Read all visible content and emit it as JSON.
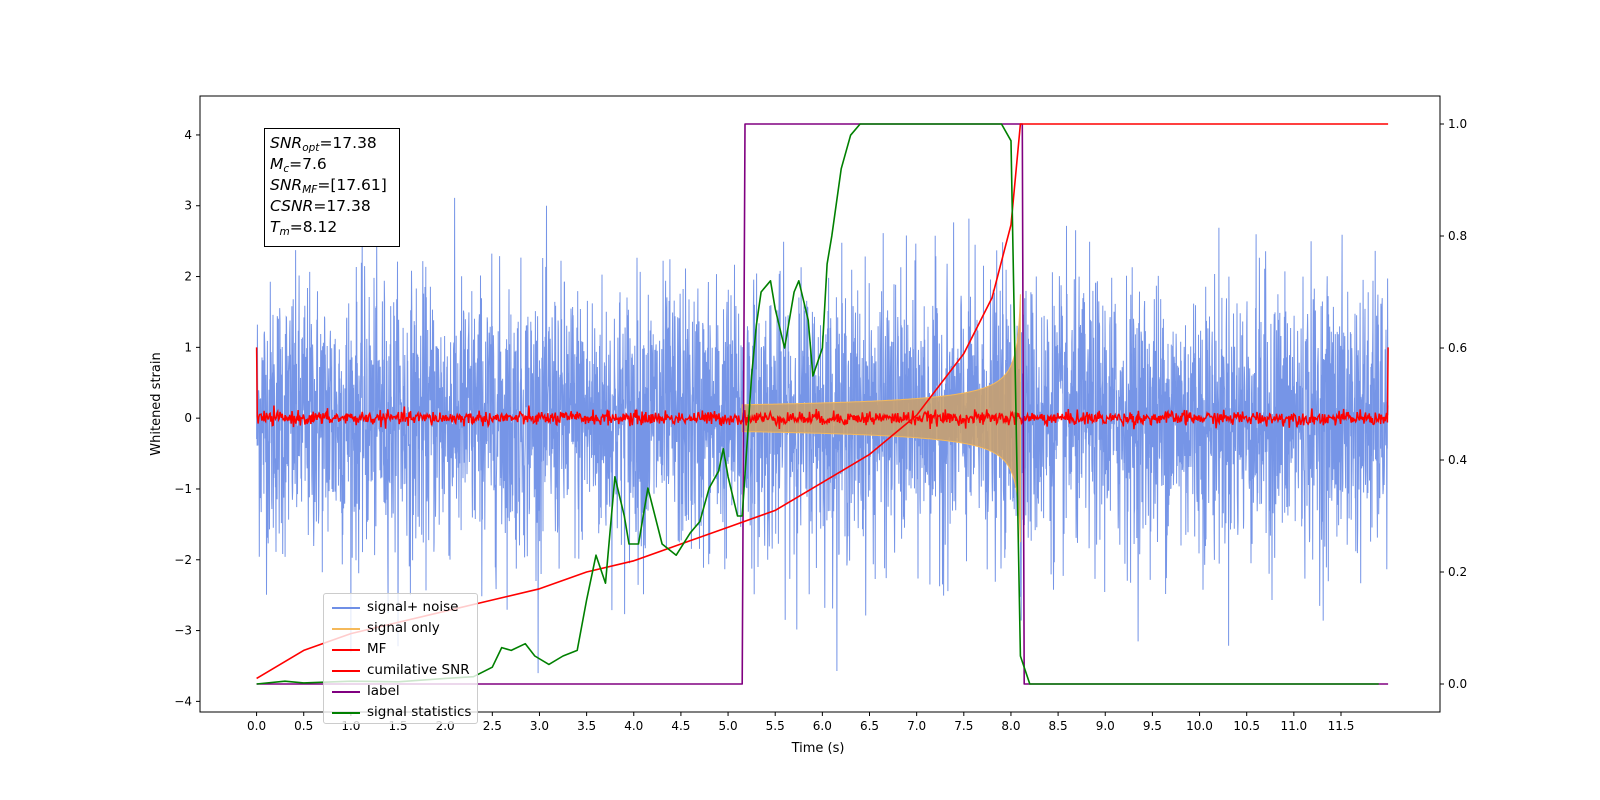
{
  "chart_data": {
    "type": "line",
    "xlabel": "Time (s)",
    "ylabel": "Whitened strain",
    "x_ticks": [
      "0.0",
      "0.5",
      "1.0",
      "1.5",
      "2.0",
      "2.5",
      "3.0",
      "3.5",
      "4.0",
      "4.5",
      "5.0",
      "5.5",
      "6.0",
      "6.5",
      "7.0",
      "7.5",
      "8.0",
      "8.5",
      "9.0",
      "9.5",
      "10.0",
      "10.5",
      "11.0",
      "11.5"
    ],
    "xlim": [
      -0.6,
      12.55
    ],
    "ylim_left": [
      -4.15,
      4.55
    ],
    "ylim_right": [
      -0.05,
      1.05
    ],
    "y_ticks_left": [
      "4",
      "3",
      "2",
      "1",
      "0",
      "−1",
      "−2",
      "−3",
      "−4"
    ],
    "y_ticks_right": [
      "0.0",
      "0.2",
      "0.4",
      "0.6",
      "0.8",
      "1.0"
    ],
    "annotation": {
      "snr_opt_base": "SNR",
      "snr_opt_sub": "opt",
      "snr_opt_value": "=17.38",
      "mc_base": "M",
      "mc_sub": "c",
      "mc_value": "=7.6",
      "snr_mf_base": "SNR",
      "snr_mf_sub": "MF",
      "snr_mf_value": "=[17.61]",
      "csnr_base": "CSNR",
      "csnr_value": "=17.38",
      "tm_base": "T",
      "tm_sub": "m",
      "tm_value": "=8.12"
    },
    "legend_placement": "lower-left",
    "series": [
      {
        "name": "signal+ noise",
        "color": "#6f8fe6",
        "axis": "left",
        "kind": "noise",
        "sigma": 1.0,
        "x_range": [
          0,
          12
        ]
      },
      {
        "name": "signal only",
        "color": "#f5b95a",
        "axis": "left",
        "kind": "chirp",
        "t_start": 5.15,
        "t_merge": 8.1,
        "max_amplitude": 1.7
      },
      {
        "name": "MF",
        "color": "#ff0000",
        "axis": "left",
        "kind": "noise",
        "sigma": 0.05,
        "edge_value": 1.0,
        "x_range": [
          0,
          12
        ]
      },
      {
        "name": "cumilative SNR",
        "color": "#ff0000",
        "axis": "right",
        "x": [
          0.0,
          0.5,
          1.0,
          1.5,
          2.0,
          2.5,
          3.0,
          3.5,
          4.0,
          4.5,
          5.0,
          5.5,
          6.0,
          6.5,
          7.0,
          7.5,
          7.8,
          8.0,
          8.1,
          12.0
        ],
        "values": [
          0.01,
          0.06,
          0.09,
          0.11,
          0.13,
          0.15,
          0.17,
          0.2,
          0.22,
          0.25,
          0.28,
          0.31,
          0.36,
          0.41,
          0.48,
          0.59,
          0.69,
          0.82,
          1.0,
          1.0
        ]
      },
      {
        "name": "label",
        "color": "#800080",
        "axis": "right",
        "x": [
          0.0,
          5.15,
          5.18,
          8.12,
          8.14,
          12.0
        ],
        "values": [
          0.0,
          0.0,
          1.0,
          1.0,
          0.0,
          0.0
        ]
      },
      {
        "name": "signal statistics",
        "color": "#008000",
        "axis": "right",
        "x": [
          0.0,
          0.3,
          0.5,
          1.0,
          1.5,
          2.0,
          2.3,
          2.5,
          2.6,
          2.7,
          2.85,
          2.95,
          3.1,
          3.25,
          3.4,
          3.5,
          3.6,
          3.7,
          3.8,
          3.9,
          3.95,
          4.05,
          4.15,
          4.3,
          4.45,
          4.6,
          4.7,
          4.8,
          4.9,
          4.95,
          5.0,
          5.1,
          5.15,
          5.25,
          5.3,
          5.35,
          5.45,
          5.5,
          5.6,
          5.7,
          5.75,
          5.85,
          5.9,
          6.0,
          6.05,
          6.1,
          6.2,
          6.3,
          6.4,
          6.5,
          7.0,
          7.5,
          7.9,
          8.0,
          8.1,
          8.2,
          9.0,
          10.0,
          11.0,
          11.9
        ],
        "values": [
          0.0,
          0.005,
          0.002,
          0.005,
          0.004,
          0.01,
          0.013,
          0.03,
          0.065,
          0.06,
          0.072,
          0.05,
          0.035,
          0.05,
          0.06,
          0.15,
          0.23,
          0.18,
          0.37,
          0.3,
          0.25,
          0.25,
          0.35,
          0.25,
          0.23,
          0.27,
          0.29,
          0.35,
          0.38,
          0.42,
          0.37,
          0.3,
          0.3,
          0.55,
          0.64,
          0.7,
          0.72,
          0.67,
          0.6,
          0.7,
          0.72,
          0.65,
          0.55,
          0.6,
          0.75,
          0.8,
          0.92,
          0.98,
          1.0,
          1.0,
          1.0,
          1.0,
          1.0,
          0.97,
          0.05,
          0.0,
          0.0,
          0.0,
          0.0,
          0.0
        ]
      }
    ]
  }
}
